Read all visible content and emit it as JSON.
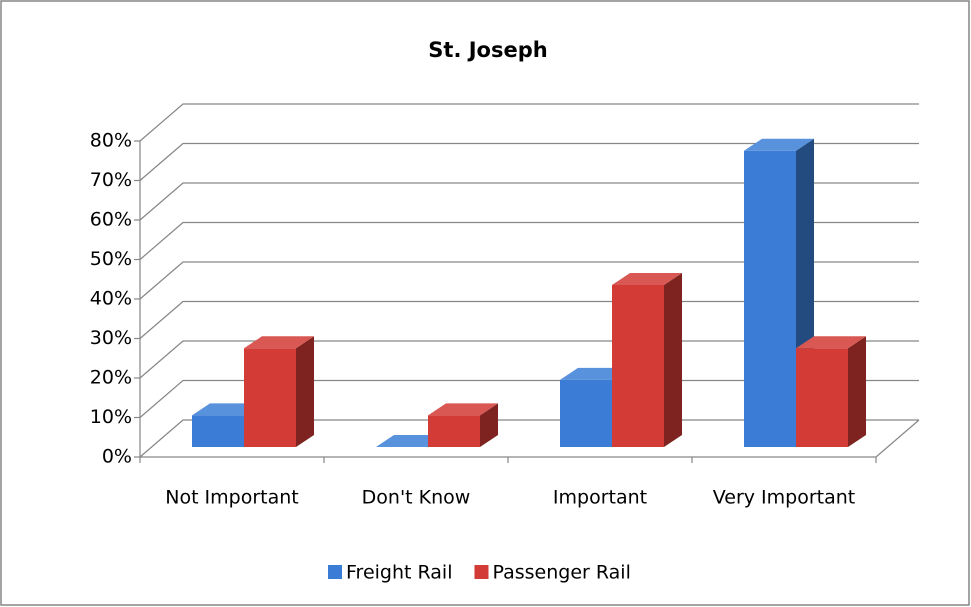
{
  "chart_data": {
    "type": "bar3d",
    "title": "St. Joseph",
    "categories": [
      "Not Important",
      "Don't Know",
      "Important",
      "Very Important"
    ],
    "series": [
      {
        "name": "Freight Rail",
        "color": "#3b7dd6",
        "values": [
          8,
          0,
          17,
          75
        ]
      },
      {
        "name": "Passenger Rail",
        "color": "#d23b36",
        "values": [
          25,
          8,
          41,
          25
        ]
      }
    ],
    "ylim": [
      0,
      80
    ],
    "yticks": [
      {
        "value": 0,
        "label": "0%"
      },
      {
        "value": 10,
        "label": "10%"
      },
      {
        "value": 20,
        "label": "20%"
      },
      {
        "value": 30,
        "label": "30%"
      },
      {
        "value": 40,
        "label": "40%"
      },
      {
        "value": 50,
        "label": "50%"
      },
      {
        "value": 60,
        "label": "60%"
      },
      {
        "value": 70,
        "label": "70%"
      },
      {
        "value": 80,
        "label": "80%"
      }
    ],
    "grid": true,
    "legend": "bottom"
  }
}
